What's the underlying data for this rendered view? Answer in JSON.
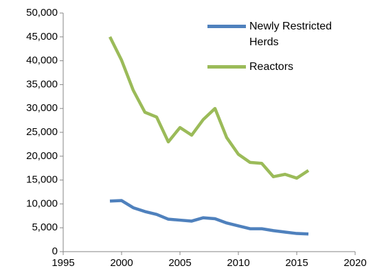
{
  "chart_data": {
    "type": "line",
    "x": [
      1999,
      2000,
      2001,
      2002,
      2003,
      2004,
      2005,
      2006,
      2007,
      2008,
      2009,
      2010,
      2011,
      2012,
      2013,
      2014,
      2015,
      2016
    ],
    "series": [
      {
        "name": "Newly Restricted Herds",
        "color": "#4f81bd",
        "values": [
          10600,
          10700,
          9200,
          8400,
          7800,
          6800,
          6600,
          6400,
          7100,
          6900,
          6000,
          5400,
          4800,
          4800,
          4400,
          4100,
          3800,
          3700
        ]
      },
      {
        "name": "Reactors",
        "color": "#9bbb59",
        "values": [
          45000,
          40100,
          33800,
          29200,
          28200,
          23000,
          26000,
          24400,
          27700,
          30000,
          23900,
          20400,
          18700,
          18500,
          15700,
          16200,
          15400,
          17000
        ]
      }
    ],
    "xlim": [
      1995,
      2020
    ],
    "xticks": [
      1995,
      2000,
      2005,
      2010,
      2015,
      2020
    ],
    "ylim": [
      0,
      50000
    ],
    "yticks": [
      0,
      {
        "value": 5000,
        "label": "5,000"
      },
      {
        "value": 10000,
        "label": "10,000"
      },
      {
        "value": 15000,
        "label": "15,000"
      },
      {
        "value": 20000,
        "label": "20,000"
      },
      {
        "value": 25000,
        "label": "25,000"
      },
      {
        "value": 30000,
        "label": "30,000"
      },
      {
        "value": 35000,
        "label": "35,000"
      },
      {
        "value": 40000,
        "label": "40,000"
      },
      {
        "value": 45000,
        "label": "45,000"
      },
      {
        "value": 50000,
        "label": "50,000"
      }
    ],
    "grid": false,
    "legend": "top-right"
  }
}
